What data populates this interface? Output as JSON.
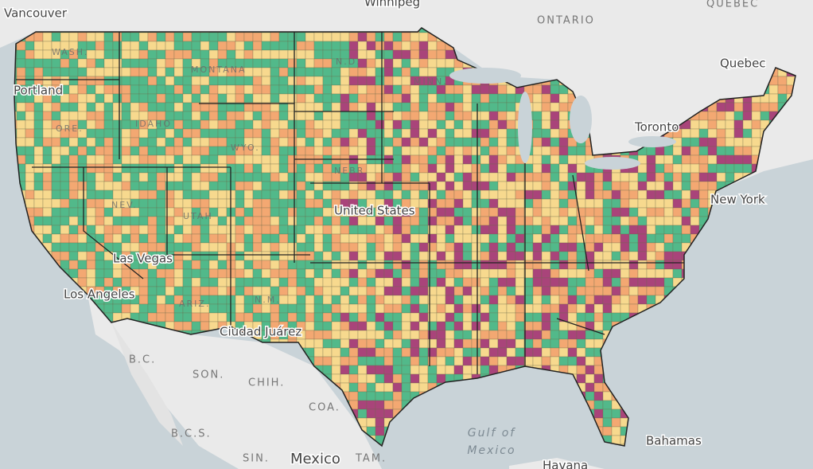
{
  "labels": {
    "vancouver": "Vancouver",
    "winnipeg": "Winnipeg",
    "ontario": "ONTARIO",
    "quebec_region": "QUEBEC",
    "quebec_city": "Quebec",
    "portland": "Portland",
    "wash": "WASH.",
    "montana": "MONTANA",
    "nd": "N.D.",
    "minn": "MINN.",
    "ore": "ORE.",
    "idaho": "IDAHO",
    "wyo": "WYO.",
    "nev": "NEV.",
    "utah": "UTAH",
    "nebr": "NEBR.",
    "united_states": "United States",
    "las_vegas": "Las Vegas",
    "los_angeles": "Los Angeles",
    "ariz": "ARIZ.",
    "nm": "N.M.",
    "ciudad_juarez": "Ciudad Juárez",
    "toronto": "Toronto",
    "new_york": "New York",
    "bc": "B.C.",
    "son": "SON.",
    "chih": "CHIH.",
    "coa": "COA.",
    "bcs": "B.C.S.",
    "sin": "SIN.",
    "mexico": "Mexico",
    "tam": "TAM.",
    "gulf_line1": "Gulf of",
    "gulf_line2": "Mexico",
    "bahamas": "Bahamas",
    "havana": "Havana"
  }
}
